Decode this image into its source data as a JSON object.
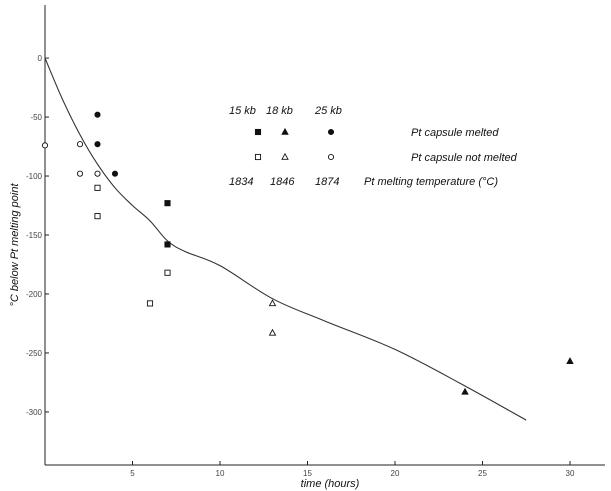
{
  "chart_data": {
    "type": "scatter",
    "xlabel": "time  (hours)",
    "ylabel": "°C below Pt melting point",
    "xlim": [
      0,
      32
    ],
    "ylim": [
      -345,
      45
    ],
    "x_ticks": [
      5,
      10,
      15,
      20,
      25,
      30
    ],
    "y_ticks": [
      0,
      -50,
      -100,
      -150,
      -200,
      -250,
      -300
    ],
    "x_tick_labels": [
      "5",
      "10",
      "15",
      "20",
      "25",
      "30"
    ],
    "y_tick_labels": [
      "0",
      "-50",
      "-100",
      "-150",
      "-200",
      "-250",
      "-300"
    ],
    "grid": false,
    "legend": {
      "position": "top-center",
      "pressure_headers": [
        "15 kb",
        "18 kb",
        "25 kb"
      ],
      "rows": [
        {
          "label": "Pt capsule melted",
          "symbols": [
            "filled-square",
            "filled-triangle",
            "filled-circle"
          ]
        },
        {
          "label": "Pt capsule not melted",
          "symbols": [
            "open-square",
            "open-triangle",
            "open-circle"
          ]
        },
        {
          "label": "Pt melting temperature (°C)",
          "values": [
            "1834",
            "1846",
            "1874"
          ]
        }
      ]
    },
    "series": [
      {
        "name": "15 kb melted",
        "marker": "filled-square",
        "points": [
          [
            7,
            -158
          ],
          [
            7,
            -123
          ]
        ]
      },
      {
        "name": "15 kb not melted",
        "marker": "open-square",
        "points": [
          [
            3,
            -110
          ],
          [
            3,
            -134
          ],
          [
            6,
            -208
          ],
          [
            7,
            -182
          ]
        ]
      },
      {
        "name": "18 kb melted",
        "marker": "filled-triangle",
        "points": [
          [
            24,
            -283
          ],
          [
            30,
            -257
          ]
        ]
      },
      {
        "name": "18 kb not melted",
        "marker": "open-triangle",
        "points": [
          [
            13,
            -208
          ],
          [
            13,
            -233
          ]
        ]
      },
      {
        "name": "25 kb melted",
        "marker": "filled-circle",
        "points": [
          [
            3,
            -48
          ],
          [
            3,
            -73
          ],
          [
            4,
            -98
          ]
        ]
      },
      {
        "name": "25 kb not melted",
        "marker": "open-circle",
        "points": [
          [
            0,
            -74
          ],
          [
            2,
            -73
          ],
          [
            2,
            -98
          ],
          [
            3,
            -98
          ]
        ]
      }
    ],
    "curve": {
      "points": [
        [
          0,
          0
        ],
        [
          1,
          -35
        ],
        [
          2,
          -65
        ],
        [
          3,
          -90
        ],
        [
          4,
          -110
        ],
        [
          5,
          -125
        ],
        [
          6,
          -138
        ],
        [
          7,
          -155
        ],
        [
          8,
          -164
        ],
        [
          10,
          -176
        ],
        [
          13,
          -204
        ],
        [
          16,
          -223
        ],
        [
          20,
          -247
        ],
        [
          24,
          -278
        ],
        [
          27.5,
          -307
        ]
      ]
    }
  }
}
